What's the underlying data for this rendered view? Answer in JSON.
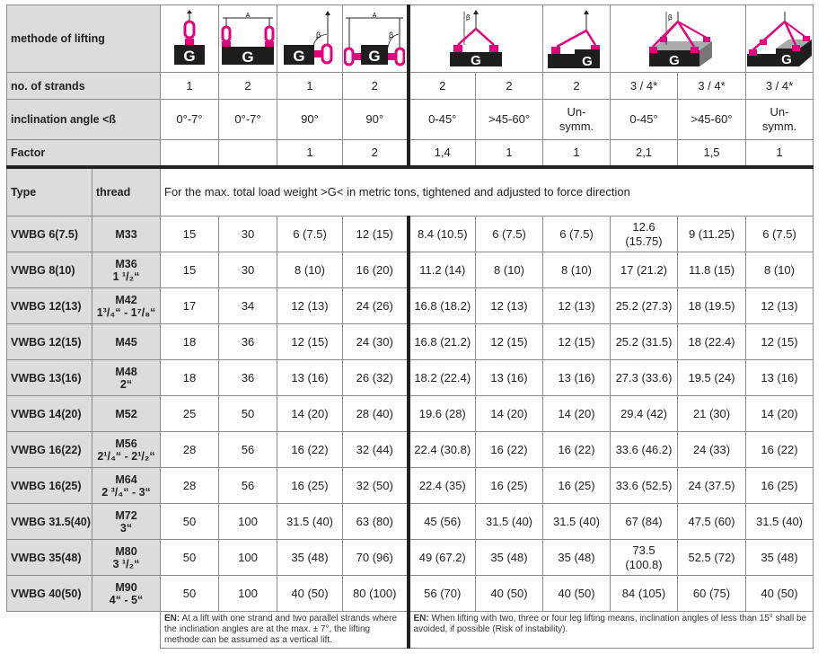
{
  "header": {
    "method_label": "methode of lifting",
    "strands_label": "no. of strands",
    "angle_label": "inclination angle <ß",
    "factor_label": "Factor",
    "type_label": "Type",
    "thread_label": "thread",
    "description": "For the max. total load weight >G< in metric tons, tightened and adjusted to force direction",
    "icon_letter": "G",
    "dim_a": "A",
    "beta": "β"
  },
  "strands": [
    "1",
    "2",
    "1",
    "2",
    "2",
    "2",
    "2",
    "3 / 4*",
    "3 / 4*",
    "3 / 4*"
  ],
  "angles": [
    [
      "0°-7°"
    ],
    [
      "0°-7°"
    ],
    [
      "90°"
    ],
    [
      "90°"
    ],
    [
      "0-45°"
    ],
    [
      ">45-60°"
    ],
    [
      "Un-",
      "symm."
    ],
    [
      "0-45°"
    ],
    [
      ">45-60°"
    ],
    [
      "Un-",
      "symm."
    ]
  ],
  "factors": [
    "",
    "",
    "1",
    "2",
    "1,4",
    "1",
    "1",
    "2,1",
    "1,5",
    "1"
  ],
  "rows": [
    {
      "type": "VWBG 6(7.5)",
      "thread": [
        "M33"
      ],
      "values": [
        [
          "15"
        ],
        [
          "30"
        ],
        [
          "6 (7.5)"
        ],
        [
          "12 (15)"
        ],
        [
          "8.4 (10.5)"
        ],
        [
          "6 (7.5)"
        ],
        [
          "6 (7.5)"
        ],
        [
          "12.6",
          "(15.75)"
        ],
        [
          "9 (11.25)"
        ],
        [
          "6 (7.5)"
        ]
      ]
    },
    {
      "type": "VWBG 8(10)",
      "thread": [
        "M36",
        "1 ¹/₂“"
      ],
      "values": [
        [
          "15"
        ],
        [
          "30"
        ],
        [
          "8 (10)"
        ],
        [
          "16 (20)"
        ],
        [
          "11.2 (14)"
        ],
        [
          "8 (10)"
        ],
        [
          "8 (10)"
        ],
        [
          "17 (21.2)"
        ],
        [
          "11.8 (15)"
        ],
        [
          "8 (10)"
        ]
      ]
    },
    {
      "type": "VWBG 12(13)",
      "thread": [
        "M42",
        "1³/₄“ - 1⁷/₈“"
      ],
      "values": [
        [
          "17"
        ],
        [
          "34"
        ],
        [
          "12 (13)"
        ],
        [
          "24 (26)"
        ],
        [
          "16.8 (18.2)"
        ],
        [
          "12 (13)"
        ],
        [
          "12 (13)"
        ],
        [
          "25.2 (27.3)"
        ],
        [
          "18 (19.5)"
        ],
        [
          "12 (13)"
        ]
      ]
    },
    {
      "type": "VWBG 12(15)",
      "thread": [
        "M45"
      ],
      "values": [
        [
          "18"
        ],
        [
          "36"
        ],
        [
          "12 (15)"
        ],
        [
          "24 (30)"
        ],
        [
          "16.8 (21.2)"
        ],
        [
          "12 (15)"
        ],
        [
          "12 (15)"
        ],
        [
          "25.2 (31.5)"
        ],
        [
          "18 (22.4)"
        ],
        [
          "12 (15)"
        ]
      ]
    },
    {
      "type": "VWBG 13(16)",
      "thread": [
        "M48",
        "2“"
      ],
      "values": [
        [
          "18"
        ],
        [
          "36"
        ],
        [
          "13 (16)"
        ],
        [
          "26 (32)"
        ],
        [
          "18.2 (22.4)"
        ],
        [
          "13 (16)"
        ],
        [
          "13 (16)"
        ],
        [
          "27.3 (33.6)"
        ],
        [
          "19.5 (24)"
        ],
        [
          "13 (16)"
        ]
      ]
    },
    {
      "type": "VWBG 14(20)",
      "thread": [
        "M52"
      ],
      "values": [
        [
          "25"
        ],
        [
          "50"
        ],
        [
          "14 (20)"
        ],
        [
          "28 (40)"
        ],
        [
          "19.6 (28)"
        ],
        [
          "14 (20)"
        ],
        [
          "14 (20)"
        ],
        [
          "29.4 (42)"
        ],
        [
          "21 (30)"
        ],
        [
          "14 (20)"
        ]
      ]
    },
    {
      "type": "VWBG 16(22)",
      "thread": [
        "M56",
        "2¹/₄“ - 2¹/₂“"
      ],
      "values": [
        [
          "28"
        ],
        [
          "56"
        ],
        [
          "16 (22)"
        ],
        [
          "32 (44)"
        ],
        [
          "22.4 (30.8)"
        ],
        [
          "16 (22)"
        ],
        [
          "16 (22)"
        ],
        [
          "33.6 (46.2)"
        ],
        [
          "24 (33)"
        ],
        [
          "16 (22)"
        ]
      ]
    },
    {
      "type": "VWBG 16(25)",
      "thread": [
        "M64",
        "2 ³/₄“ - 3“"
      ],
      "values": [
        [
          "28"
        ],
        [
          "56"
        ],
        [
          "16 (25)"
        ],
        [
          "32 (50)"
        ],
        [
          "22.4 (35)"
        ],
        [
          "16 (25)"
        ],
        [
          "16 (25)"
        ],
        [
          "33.6 (52.5)"
        ],
        [
          "24 (37.5)"
        ],
        [
          "16 (25)"
        ]
      ]
    },
    {
      "type": "VWBG 31.5(40)",
      "thread": [
        "M72",
        "3“"
      ],
      "values": [
        [
          "50"
        ],
        [
          "100"
        ],
        [
          "31.5 (40)"
        ],
        [
          "63 (80)"
        ],
        [
          "45 (56)"
        ],
        [
          "31.5 (40)"
        ],
        [
          "31.5 (40)"
        ],
        [
          "67 (84)"
        ],
        [
          "47.5 (60)"
        ],
        [
          "31.5 (40)"
        ]
      ]
    },
    {
      "type": "VWBG 35(48)",
      "thread": [
        "M80",
        "3 ¹/₂“"
      ],
      "values": [
        [
          "50"
        ],
        [
          "100"
        ],
        [
          "35 (48)"
        ],
        [
          "70 (96)"
        ],
        [
          "49 (67.2)"
        ],
        [
          "35 (48)"
        ],
        [
          "35 (48)"
        ],
        [
          "73.5",
          "(100.8)"
        ],
        [
          "52.5 (72)"
        ],
        [
          "35 (48)"
        ]
      ]
    },
    {
      "type": "VWBG 40(50)",
      "thread": [
        "M90",
        "4“ - 5“"
      ],
      "values": [
        [
          "50"
        ],
        [
          "100"
        ],
        [
          "40 (50)"
        ],
        [
          "80 (100)"
        ],
        [
          "56 (70)"
        ],
        [
          "40 (50)"
        ],
        [
          "40 (50)"
        ],
        [
          "84 (105)"
        ],
        [
          "60 (75)"
        ],
        [
          "40 (50)"
        ]
      ]
    }
  ],
  "notes": {
    "left_prefix": "EN:",
    "left": " At a lift with one strand and two parallel strands where the inclination angles are at the max. ± 7°, the lifting methode can be assumed as a vertical lift.",
    "right_prefix": "EN:",
    "right": " When lifting with two, three or four leg lifting means, inclination angles of less than 15° shall be avoided, if possible (Risk of instability)."
  },
  "colors": {
    "accent": "#e6007e",
    "label_bg": "#dcdcdd",
    "load_block": "#1e1e1e"
  }
}
